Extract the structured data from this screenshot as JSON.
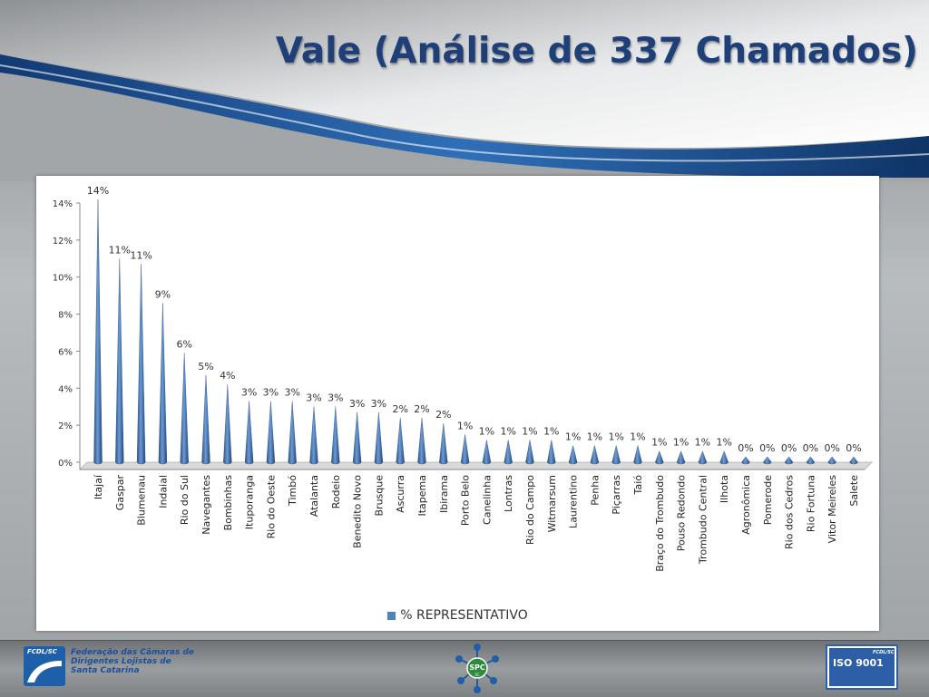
{
  "title": "Vale (Análise de 337 Chamados)",
  "footer": {
    "fcdl_logo_text": "FCDL/SC",
    "federation_name": "Federação das Câmaras de Dirigentes Lojistas de Santa Catarina",
    "spc_logo_text": "SPC",
    "spc_logo_sub": "SC",
    "iso_label": "ISO 9001",
    "iso_sub": "FCDL/SC"
  },
  "colors": {
    "bar": "#4f81bd",
    "bar_dark": "#2a4f82",
    "title": "#1f3f78"
  },
  "chart_data": {
    "type": "bar",
    "categories": [
      "Itajaí",
      "Gaspar",
      "Blumenau",
      "Indaial",
      "Rio do Sul",
      "Navegantes",
      "Bombinhas",
      "Ituporanga",
      "Rio do Oeste",
      "Timbó",
      "Atalanta",
      "Rodeio",
      "Benedito Novo",
      "Brusque",
      "Ascurra",
      "Itapema",
      "Ibirama",
      "Porto Belo",
      "Canelinha",
      "Lontras",
      "Rio do Campo",
      "Witmarsum",
      "Laurentino",
      "Penha",
      "Piçarras",
      "Taió",
      "Braço do Trombudo",
      "Pouso Redondo",
      "Trombudo Central",
      "Ilhota",
      "Agronômica",
      "Pomerode",
      "Rio dos Cedros",
      "Rio Fortuna",
      "Vitor Meireles",
      "Salete"
    ],
    "series": [
      {
        "name": "% REPRESENTATIVO",
        "values": [
          14.2,
          11.0,
          10.7,
          8.6,
          5.9,
          4.7,
          4.2,
          3.3,
          3.3,
          3.3,
          3.0,
          3.0,
          2.7,
          2.7,
          2.4,
          2.4,
          2.1,
          1.5,
          1.2,
          1.2,
          1.2,
          1.2,
          0.9,
          0.9,
          0.9,
          0.9,
          0.6,
          0.6,
          0.6,
          0.6,
          0.3,
          0.3,
          0.3,
          0.3,
          0.3,
          0.3
        ],
        "data_labels": [
          "14%",
          "11%",
          "11%",
          "9%",
          "6%",
          "5%",
          "4%",
          "3%",
          "3%",
          "3%",
          "3%",
          "3%",
          "3%",
          "3%",
          "2%",
          "2%",
          "2%",
          "1%",
          "1%",
          "1%",
          "1%",
          "1%",
          "1%",
          "1%",
          "1%",
          "1%",
          "1%",
          "1%",
          "1%",
          "1%",
          "0%",
          "0%",
          "0%",
          "0%",
          "0%",
          "0%"
        ]
      }
    ],
    "yticks": [
      "0%",
      "2%",
      "4%",
      "6%",
      "8%",
      "10%",
      "12%",
      "14%"
    ],
    "ylim": [
      0,
      14
    ],
    "legend_position": "bottom",
    "grid": false
  }
}
